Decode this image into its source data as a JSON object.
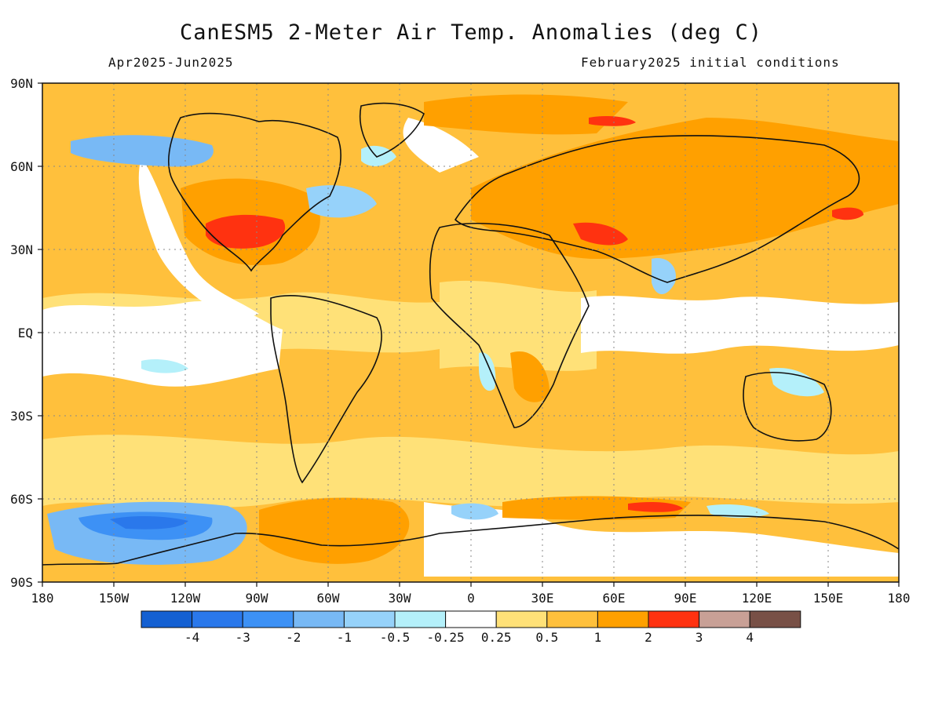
{
  "title": "CanESM5 2-Meter Air Temp. Anomalies (deg C)",
  "subtitle_left": "Apr2025-Jun2025",
  "subtitle_right": "February2025 initial conditions",
  "lat_labels": [
    "90N",
    "60N",
    "30N",
    "EQ",
    "30S",
    "60S",
    "90S"
  ],
  "lon_labels": [
    "180",
    "150W",
    "120W",
    "90W",
    "60W",
    "30W",
    "0",
    "30E",
    "60E",
    "90E",
    "120E",
    "150E",
    "180"
  ],
  "colorbar": {
    "colors": [
      "#1460d2",
      "#2a78eb",
      "#3d91f5",
      "#78b9f5",
      "#96d2fa",
      "#b4f0fa",
      "#ffffff",
      "#ffe178",
      "#ffc03c",
      "#ffa000",
      "#ff3210",
      "#c8a096",
      "#785046"
    ],
    "labels": [
      "-4",
      "-3",
      "-2",
      "-1",
      "-0.5",
      "-0.25",
      "0.25",
      "0.5",
      "1",
      "2",
      "3",
      "4"
    ]
  }
}
